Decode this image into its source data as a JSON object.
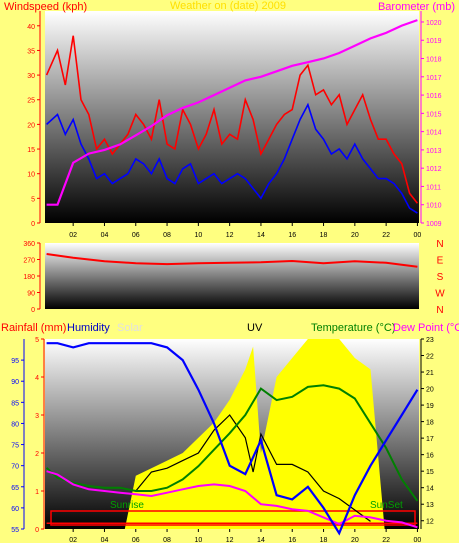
{
  "colors": {
    "background": "#ffff80",
    "wind": "#ff0000",
    "gust": "#0000ff",
    "barometer": "#ff00ff",
    "direction": "#ff0000",
    "rainfall": "#ff0000",
    "humidity": "#0000ff",
    "solar": "#ffff00",
    "uv": "#000000",
    "temperature": "#008000",
    "dewpoint": "#ff00ff"
  },
  "chart_data": [
    {
      "type": "line",
      "title": "Windspeed (kph)",
      "subtitle": "Barometer (mb)",
      "header_faint": "Weather on (date) 2009",
      "ylabel": "Windspeed (kph)",
      "ylabel_right": "Barometer (mb)",
      "ylim": [
        0,
        43
      ],
      "ylim_right": [
        1009,
        1020.6
      ],
      "y_ticks": [
        "0",
        "5",
        "10",
        "15",
        "20",
        "25",
        "30",
        "35",
        "40"
      ],
      "y_ticks_right": [
        "1009",
        "1010",
        "1011",
        "1012",
        "1013",
        "1014",
        "1015",
        "1016",
        "1017",
        "1018",
        "1019",
        "1020"
      ],
      "x_ticks": [
        "02",
        "04",
        "06",
        "08",
        "10",
        "12",
        "14",
        "16",
        "18",
        "20",
        "22",
        "00"
      ],
      "xlim": [
        0.2,
        24.1
      ],
      "grid": false,
      "series": [
        {
          "name": "Windspeed",
          "x": [
            0.3,
            1,
            1.5,
            2,
            2.5,
            3,
            3.5,
            4,
            4.5,
            5,
            5.5,
            6,
            6.5,
            7,
            7.5,
            8,
            8.5,
            9,
            9.5,
            10,
            10.5,
            11,
            11.5,
            12,
            12.5,
            13,
            13.5,
            14,
            14.5,
            15,
            15.5,
            16,
            16.5,
            17,
            17.5,
            18,
            18.5,
            19,
            19.5,
            20,
            20.5,
            21,
            21.5,
            22,
            22.5,
            23,
            23.5,
            24
          ],
          "values": [
            30,
            35,
            28,
            38,
            25,
            22,
            15,
            17,
            14,
            16,
            18,
            22,
            20,
            17,
            25,
            16,
            15,
            23,
            20,
            15,
            18,
            23,
            16,
            18,
            17,
            25,
            21,
            14,
            17,
            20,
            22,
            23,
            30,
            32,
            26,
            27,
            24,
            26,
            20,
            23,
            26,
            21,
            17,
            17,
            14,
            12,
            6,
            4
          ]
        },
        {
          "name": "Gust",
          "x": [
            0.3,
            1,
            1.5,
            2,
            2.5,
            3,
            3.5,
            4,
            4.5,
            5,
            5.5,
            6,
            6.5,
            7,
            7.5,
            8,
            8.5,
            9,
            9.5,
            10,
            10.5,
            11,
            11.5,
            12,
            12.5,
            13,
            13.5,
            14,
            14.5,
            15,
            15.5,
            16,
            16.5,
            17,
            17.5,
            18,
            18.5,
            19,
            19.5,
            20,
            20.5,
            21,
            21.5,
            22,
            22.5,
            23,
            23.5,
            24
          ],
          "values": [
            20,
            22,
            18,
            21,
            16,
            13,
            9,
            10,
            8,
            9,
            10,
            13,
            12,
            10,
            13,
            9,
            8,
            11,
            12,
            8,
            9,
            10,
            8,
            9,
            10,
            9,
            7,
            5,
            8,
            10,
            13,
            17,
            21,
            24,
            19,
            17,
            14,
            15,
            13,
            16,
            13,
            11,
            9,
            9,
            8,
            6,
            3,
            2
          ]
        },
        {
          "name": "Barometer",
          "axis": "right",
          "x": [
            0.3,
            1,
            2,
            3,
            4,
            5,
            6,
            7,
            8,
            9,
            10,
            11,
            12,
            13,
            14,
            15,
            16,
            17,
            18,
            19,
            20,
            21,
            22,
            23,
            24
          ],
          "values": [
            1010,
            1010,
            1012.3,
            1012.8,
            1013.0,
            1013.3,
            1013.8,
            1014.3,
            1014.9,
            1015.3,
            1015.6,
            1016.0,
            1016.4,
            1016.8,
            1017.0,
            1017.3,
            1017.6,
            1017.8,
            1018.0,
            1018.3,
            1018.7,
            1019.1,
            1019.4,
            1019.8,
            1020.1
          ]
        }
      ]
    },
    {
      "type": "line",
      "y_ticks": [
        "0",
        "90",
        "180",
        "270",
        "360"
      ],
      "y_ticks_right": [
        "N",
        "W",
        "S",
        "E",
        "N"
      ],
      "ylim": [
        0,
        360
      ],
      "x_ticks": [
        "02",
        "04",
        "06",
        "08",
        "10",
        "12",
        "14",
        "16",
        "18",
        "20",
        "22",
        "00"
      ],
      "xlim": [
        0.2,
        24.1
      ],
      "grid": false,
      "series": [
        {
          "name": "Direction",
          "x": [
            0.3,
            2,
            4,
            6,
            8,
            10,
            12,
            14,
            16,
            18,
            20,
            22,
            24
          ],
          "values": [
            300,
            280,
            260,
            250,
            245,
            250,
            252,
            255,
            262,
            250,
            260,
            252,
            230
          ]
        }
      ]
    },
    {
      "type": "area",
      "legend": [
        "Rainfall (mm)",
        "Humidity",
        "Solar",
        "UV",
        "Temperature (°C)",
        "Dew Point (°C)"
      ],
      "ylim": [
        0,
        5
      ],
      "ylim_humidity": [
        55,
        100
      ],
      "ylim_right": [
        11.5,
        23
      ],
      "y_ticks": [
        "0",
        "1",
        "2",
        "3",
        "4",
        "5"
      ],
      "y_ticks_humidity": [
        "55",
        "60",
        "65",
        "70",
        "75",
        "80",
        "85",
        "90",
        "95"
      ],
      "y_ticks_right": [
        "12",
        "13",
        "14",
        "15",
        "16",
        "17",
        "18",
        "19",
        "20",
        "21",
        "22",
        "23"
      ],
      "x_ticks": [
        "02",
        "04",
        "06",
        "08",
        "10",
        "12",
        "14",
        "16",
        "18",
        "20",
        "22",
        "00"
      ],
      "xlim": [
        0.2,
        24.1
      ],
      "annotations": [
        "Sunrise",
        "SunSet"
      ],
      "sunrise_hour": 5.3,
      "sunset_hour": 21.9,
      "grid": false,
      "series": [
        {
          "name": "Humidity",
          "x": [
            0.3,
            1,
            2,
            3,
            4,
            5,
            6,
            7,
            8,
            9,
            10,
            11,
            12,
            13,
            14,
            15,
            16,
            17,
            18,
            19,
            20,
            21,
            22,
            23,
            24
          ],
          "values": [
            99,
            99,
            98,
            99,
            99,
            99,
            99,
            99,
            98,
            95,
            88,
            80,
            70,
            68,
            76,
            63,
            62,
            65,
            60,
            54,
            63,
            70,
            76,
            82,
            88
          ]
        },
        {
          "name": "Solar",
          "x": [
            5.3,
            6,
            7,
            8,
            9,
            10,
            11,
            12,
            13,
            13.5,
            14,
            15,
            16,
            17,
            18,
            19,
            20,
            21,
            21.9
          ],
          "values": [
            0,
            1.4,
            1.6,
            1.8,
            2.0,
            2.4,
            2.8,
            3.4,
            4.2,
            4.8,
            2.0,
            4.0,
            4.5,
            5.0,
            5.0,
            5.0,
            4.5,
            4.2,
            0
          ]
        },
        {
          "name": "Temperature",
          "x": [
            0.3,
            1,
            2,
            3,
            4,
            5,
            6,
            7,
            8,
            9,
            10,
            11,
            12,
            13,
            14,
            15,
            16,
            17,
            18,
            19,
            20,
            21,
            22,
            23,
            24
          ],
          "values": [
            15.2,
            14.6,
            14.3,
            14.1,
            14.0,
            14.0,
            13.8,
            13.8,
            14.0,
            14.5,
            15.3,
            16.3,
            17.3,
            18.4,
            20.0,
            19.3,
            19.5,
            20.1,
            20.2,
            20.0,
            19.4,
            17.9,
            16.4,
            14.5,
            13.2
          ]
        },
        {
          "name": "Dew Point",
          "x": [
            0.3,
            1,
            2,
            3,
            4,
            5,
            6,
            7,
            8,
            9,
            10,
            11,
            12,
            13,
            14,
            15,
            16,
            17,
            18,
            19,
            20,
            21,
            22,
            23,
            24
          ],
          "values": [
            15.0,
            14.8,
            14.2,
            13.9,
            13.8,
            13.7,
            13.6,
            13.5,
            13.7,
            13.9,
            14.1,
            14.2,
            14.1,
            13.8,
            13.0,
            12.9,
            12.7,
            12.6,
            12.2,
            11.8,
            12.3,
            12.2,
            12.0,
            11.9,
            11.6
          ]
        },
        {
          "name": "UV",
          "x": [
            6,
            7,
            8,
            9,
            10,
            11,
            12,
            13,
            13.5,
            14,
            15,
            16,
            17,
            18,
            19,
            20,
            21
          ],
          "values": [
            1.0,
            1.5,
            1.6,
            1.8,
            2.0,
            2.6,
            3.0,
            2.4,
            1.5,
            2.5,
            1.7,
            1.7,
            1.5,
            1.0,
            0.8,
            0.5,
            0.2
          ]
        },
        {
          "name": "Rainfall",
          "x": [
            0.3,
            24
          ],
          "values": [
            0.15,
            0.15
          ]
        }
      ]
    }
  ]
}
